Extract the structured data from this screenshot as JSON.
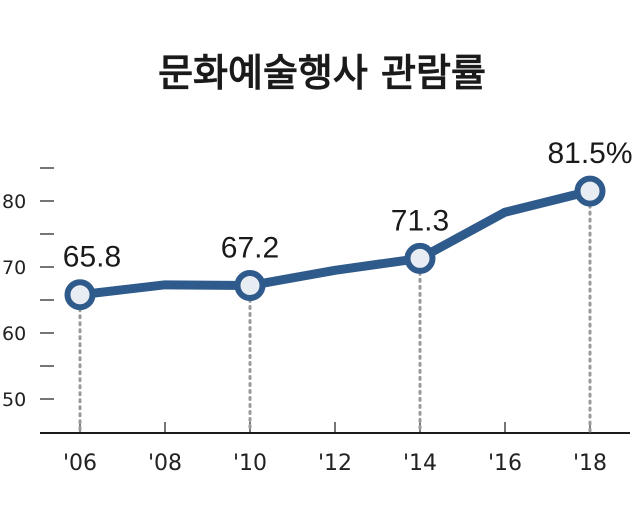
{
  "chart_data": {
    "type": "line",
    "title": "문화예술행사 관람률",
    "xlabel": "",
    "ylabel": "",
    "x": [
      "'06",
      "'08",
      "'10",
      "'12",
      "'14",
      "'16",
      "'18"
    ],
    "series": [
      {
        "name": "관람률",
        "values": [
          65.8,
          67.3,
          67.2,
          69.5,
          71.3,
          78.3,
          81.5
        ]
      }
    ],
    "y_ticks": [
      "80",
      "70",
      "60",
      "50"
    ],
    "ylim": [
      45,
      85
    ],
    "grid": false,
    "annotations": [
      {
        "index": 0,
        "text": "65.8"
      },
      {
        "index": 2,
        "text": "67.2"
      },
      {
        "index": 4,
        "text": "71.3"
      },
      {
        "index": 6,
        "text": "81.5%"
      }
    ],
    "colors": {
      "line": "#2f5a8c",
      "marker_fill": "#e8edf3",
      "axis": "#1a1a1a",
      "guide": "#9a9a9a"
    }
  }
}
